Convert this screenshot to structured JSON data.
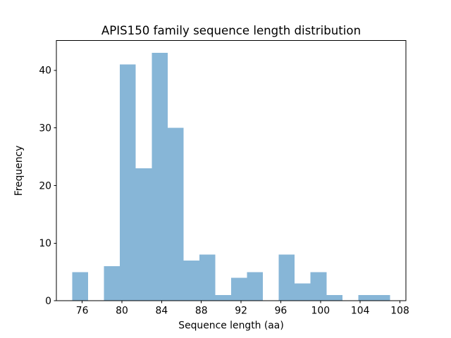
{
  "figure": {
    "background": "#ffffff"
  },
  "chart_data": {
    "type": "bar",
    "subtype": "histogram",
    "title": "APIS150 family sequence length distribution",
    "xlabel": "Sequence length (aa)",
    "ylabel": "Frequency",
    "bin_edges": [
      75.0,
      76.6,
      78.2,
      79.8,
      81.4,
      83.0,
      84.6,
      86.2,
      87.8,
      89.4,
      91.0,
      92.6,
      94.2,
      95.8,
      97.4,
      99.0,
      100.6,
      102.2,
      103.8,
      105.4,
      107.0
    ],
    "counts": [
      5,
      0,
      6,
      41,
      23,
      43,
      30,
      7,
      8,
      1,
      4,
      5,
      0,
      8,
      3,
      5,
      1,
      0,
      1,
      1
    ],
    "xticks": [
      76,
      80,
      84,
      88,
      92,
      96,
      100,
      104,
      108
    ],
    "yticks": [
      0,
      10,
      20,
      30,
      40
    ],
    "xlim": [
      73.4,
      108.6
    ],
    "ylim": [
      0,
      45.15
    ],
    "bar_color": "#87b6d7",
    "axis_color": "#000000",
    "text_color": "#000000",
    "grid": false,
    "legend": null
  }
}
